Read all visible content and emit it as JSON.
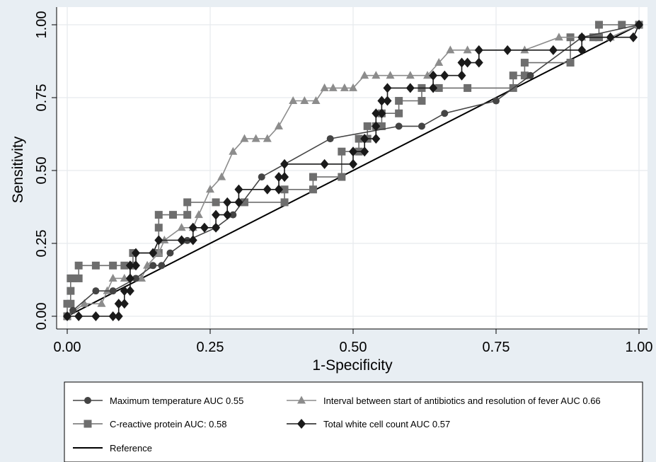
{
  "chart_data": {
    "type": "line",
    "xlabel": "1-Specificity",
    "ylabel": "Sensitivity",
    "xlim": [
      0,
      1
    ],
    "ylim": [
      0,
      1
    ],
    "xticks": [
      "0.00",
      "0.25",
      "0.50",
      "0.75",
      "1.00"
    ],
    "yticks": [
      "0.00",
      "0.25",
      "0.50",
      "0.75",
      "1.00"
    ],
    "grid": true,
    "legend_position": "bottom",
    "series": [
      {
        "name": "Maximum temperature AUC 0.55",
        "color": "#444444",
        "marker": "circle",
        "points": [
          [
            0,
            0
          ],
          [
            0.01,
            0.02
          ],
          [
            0.05,
            0.087
          ],
          [
            0.08,
            0.087
          ],
          [
            0.12,
            0.13
          ],
          [
            0.15,
            0.174
          ],
          [
            0.165,
            0.174
          ],
          [
            0.18,
            0.217
          ],
          [
            0.21,
            0.26
          ],
          [
            0.26,
            0.304
          ],
          [
            0.29,
            0.348
          ],
          [
            0.34,
            0.478
          ],
          [
            0.46,
            0.609
          ],
          [
            0.58,
            0.652
          ],
          [
            0.62,
            0.652
          ],
          [
            0.66,
            0.696
          ],
          [
            0.75,
            0.739
          ],
          [
            0.81,
            0.826
          ],
          [
            0.9,
            0.957
          ],
          [
            1,
            1
          ]
        ]
      },
      {
        "name": "Interval between start of antibiotics and resolution of fever AUC 0.66",
        "color": "#8c8c8c",
        "marker": "triangle",
        "points": [
          [
            0,
            0
          ],
          [
            0.03,
            0.043
          ],
          [
            0.06,
            0.043
          ],
          [
            0.07,
            0.087
          ],
          [
            0.08,
            0.13
          ],
          [
            0.1,
            0.13
          ],
          [
            0.13,
            0.13
          ],
          [
            0.14,
            0.174
          ],
          [
            0.16,
            0.217
          ],
          [
            0.17,
            0.261
          ],
          [
            0.2,
            0.304
          ],
          [
            0.22,
            0.304
          ],
          [
            0.23,
            0.348
          ],
          [
            0.25,
            0.435
          ],
          [
            0.27,
            0.478
          ],
          [
            0.29,
            0.565
          ],
          [
            0.31,
            0.609
          ],
          [
            0.33,
            0.609
          ],
          [
            0.35,
            0.609
          ],
          [
            0.37,
            0.652
          ],
          [
            0.395,
            0.739
          ],
          [
            0.415,
            0.739
          ],
          [
            0.435,
            0.739
          ],
          [
            0.45,
            0.783
          ],
          [
            0.465,
            0.783
          ],
          [
            0.485,
            0.783
          ],
          [
            0.5,
            0.783
          ],
          [
            0.52,
            0.826
          ],
          [
            0.54,
            0.826
          ],
          [
            0.565,
            0.826
          ],
          [
            0.6,
            0.826
          ],
          [
            0.63,
            0.826
          ],
          [
            0.65,
            0.87
          ],
          [
            0.67,
            0.913
          ],
          [
            0.7,
            0.913
          ],
          [
            0.8,
            0.913
          ],
          [
            0.86,
            0.957
          ],
          [
            0.9,
            0.957
          ],
          [
            0.95,
            0.957
          ],
          [
            1,
            1
          ]
        ]
      },
      {
        "name": "C-reactive protein AUC: 0.58",
        "color": "#6e6e6e",
        "marker": "square",
        "points": [
          [
            0,
            0
          ],
          [
            0,
            0.043
          ],
          [
            0.006,
            0.043
          ],
          [
            0.006,
            0.087
          ],
          [
            0.006,
            0.13
          ],
          [
            0.01,
            0.13
          ],
          [
            0.02,
            0.13
          ],
          [
            0.02,
            0.174
          ],
          [
            0.05,
            0.174
          ],
          [
            0.08,
            0.174
          ],
          [
            0.1,
            0.174
          ],
          [
            0.115,
            0.174
          ],
          [
            0.115,
            0.217
          ],
          [
            0.16,
            0.217
          ],
          [
            0.16,
            0.304
          ],
          [
            0.16,
            0.348
          ],
          [
            0.185,
            0.348
          ],
          [
            0.21,
            0.348
          ],
          [
            0.21,
            0.391
          ],
          [
            0.26,
            0.391
          ],
          [
            0.31,
            0.391
          ],
          [
            0.38,
            0.391
          ],
          [
            0.38,
            0.435
          ],
          [
            0.43,
            0.435
          ],
          [
            0.43,
            0.478
          ],
          [
            0.48,
            0.478
          ],
          [
            0.48,
            0.565
          ],
          [
            0.51,
            0.565
          ],
          [
            0.51,
            0.609
          ],
          [
            0.525,
            0.609
          ],
          [
            0.525,
            0.652
          ],
          [
            0.54,
            0.652
          ],
          [
            0.55,
            0.652
          ],
          [
            0.55,
            0.696
          ],
          [
            0.58,
            0.696
          ],
          [
            0.58,
            0.739
          ],
          [
            0.62,
            0.739
          ],
          [
            0.62,
            0.783
          ],
          [
            0.65,
            0.783
          ],
          [
            0.7,
            0.783
          ],
          [
            0.78,
            0.783
          ],
          [
            0.78,
            0.826
          ],
          [
            0.8,
            0.826
          ],
          [
            0.8,
            0.87
          ],
          [
            0.88,
            0.87
          ],
          [
            0.88,
            0.957
          ],
          [
            0.92,
            0.957
          ],
          [
            0.93,
            0.957
          ],
          [
            0.93,
            1
          ],
          [
            0.97,
            1
          ],
          [
            1,
            1
          ]
        ]
      },
      {
        "name": "Total white cell count AUC 0.57",
        "color": "#1a1a1a",
        "marker": "diamond",
        "points": [
          [
            0,
            0
          ],
          [
            0.02,
            0
          ],
          [
            0.05,
            0
          ],
          [
            0.08,
            0
          ],
          [
            0.09,
            0
          ],
          [
            0.09,
            0.043
          ],
          [
            0.1,
            0.043
          ],
          [
            0.1,
            0.087
          ],
          [
            0.11,
            0.087
          ],
          [
            0.11,
            0.13
          ],
          [
            0.11,
            0.174
          ],
          [
            0.12,
            0.174
          ],
          [
            0.12,
            0.217
          ],
          [
            0.15,
            0.217
          ],
          [
            0.16,
            0.261
          ],
          [
            0.2,
            0.261
          ],
          [
            0.22,
            0.261
          ],
          [
            0.22,
            0.304
          ],
          [
            0.24,
            0.304
          ],
          [
            0.26,
            0.304
          ],
          [
            0.26,
            0.348
          ],
          [
            0.28,
            0.348
          ],
          [
            0.28,
            0.391
          ],
          [
            0.3,
            0.391
          ],
          [
            0.3,
            0.435
          ],
          [
            0.35,
            0.435
          ],
          [
            0.37,
            0.435
          ],
          [
            0.37,
            0.478
          ],
          [
            0.38,
            0.478
          ],
          [
            0.38,
            0.522
          ],
          [
            0.45,
            0.522
          ],
          [
            0.5,
            0.522
          ],
          [
            0.5,
            0.565
          ],
          [
            0.52,
            0.565
          ],
          [
            0.52,
            0.609
          ],
          [
            0.54,
            0.609
          ],
          [
            0.54,
            0.652
          ],
          [
            0.54,
            0.696
          ],
          [
            0.55,
            0.696
          ],
          [
            0.55,
            0.739
          ],
          [
            0.56,
            0.739
          ],
          [
            0.56,
            0.783
          ],
          [
            0.6,
            0.783
          ],
          [
            0.64,
            0.783
          ],
          [
            0.64,
            0.826
          ],
          [
            0.66,
            0.826
          ],
          [
            0.69,
            0.826
          ],
          [
            0.69,
            0.87
          ],
          [
            0.7,
            0.87
          ],
          [
            0.72,
            0.87
          ],
          [
            0.72,
            0.913
          ],
          [
            0.77,
            0.913
          ],
          [
            0.85,
            0.913
          ],
          [
            0.9,
            0.913
          ],
          [
            0.9,
            0.957
          ],
          [
            0.95,
            0.957
          ],
          [
            0.99,
            0.957
          ],
          [
            1,
            1
          ]
        ]
      },
      {
        "name": "Reference",
        "color": "#000000",
        "marker": "none",
        "points": [
          [
            0,
            0
          ],
          [
            1,
            1
          ]
        ]
      }
    ],
    "legend": [
      {
        "label": "Maximum temperature AUC 0.55",
        "series": 0
      },
      {
        "label": "Interval between start of antibiotics and resolution of fever AUC 0.66",
        "series": 1
      },
      {
        "label": "C-reactive protein AUC: 0.58",
        "series": 2
      },
      {
        "label": "Total white cell count AUC 0.57",
        "series": 3
      },
      {
        "label": "Reference",
        "series": 4
      }
    ]
  }
}
